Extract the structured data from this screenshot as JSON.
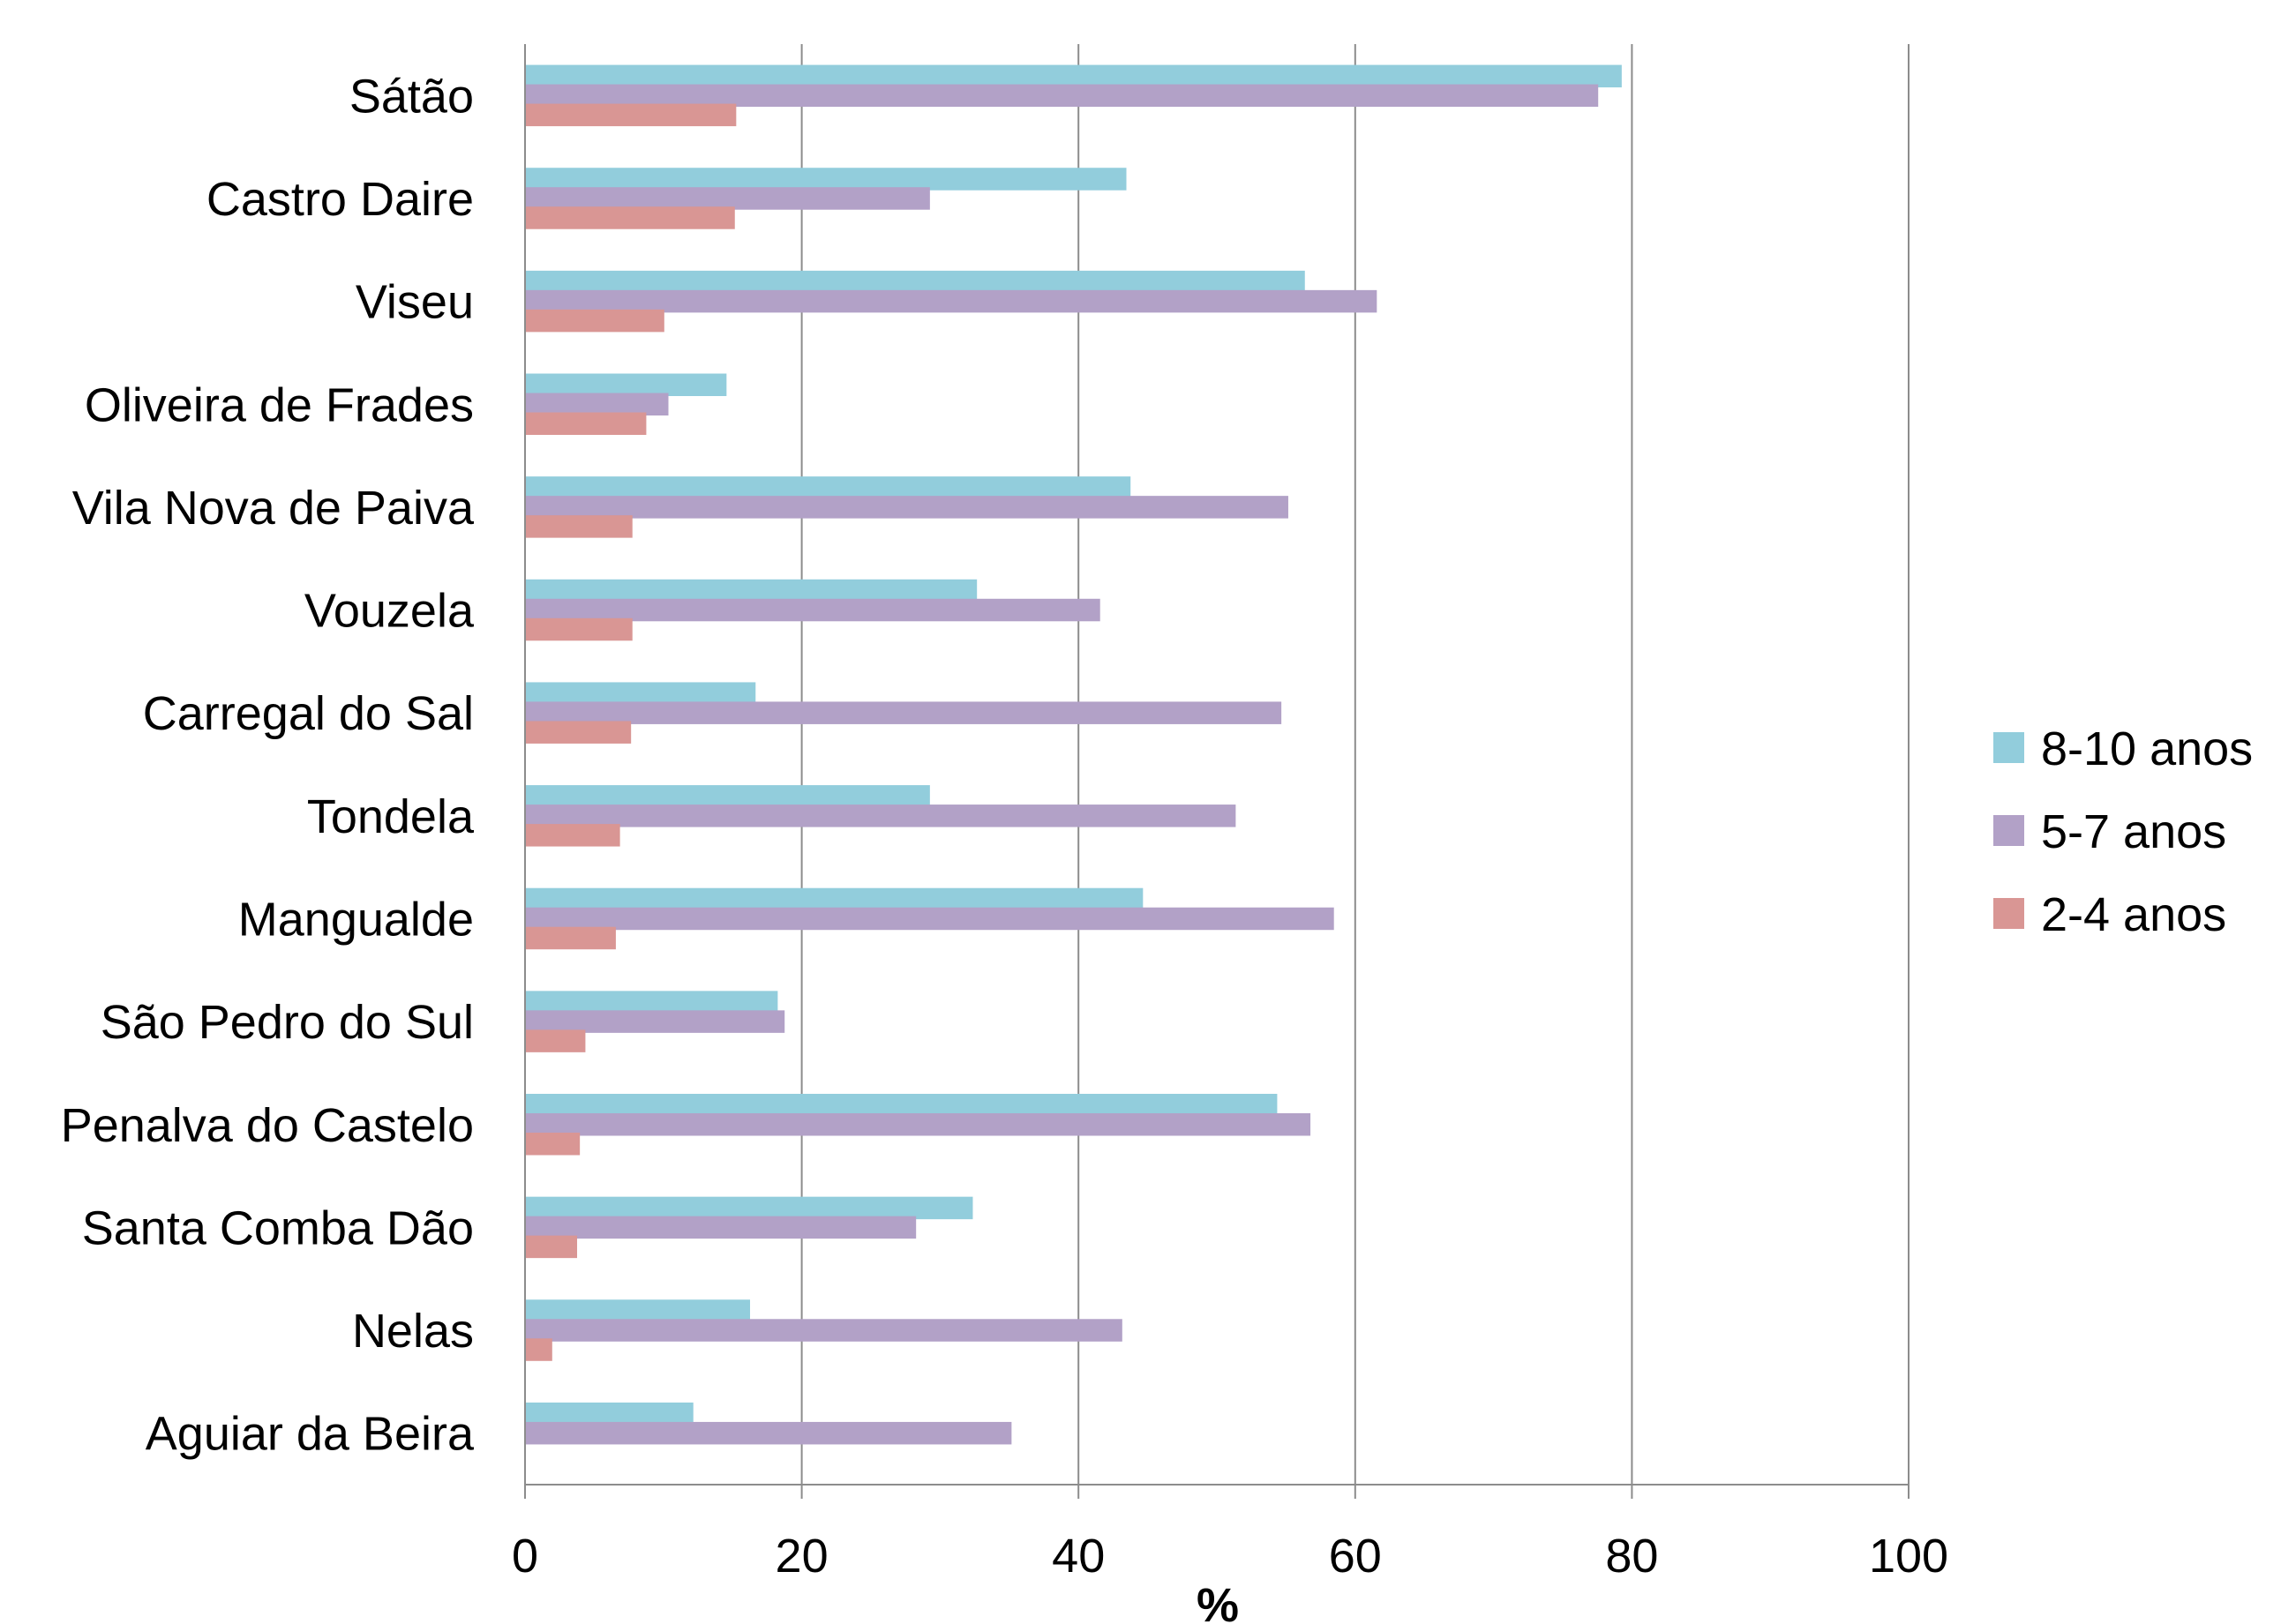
{
  "chart_data": {
    "type": "bar",
    "orientation": "horizontal",
    "categories": [
      "Sátão",
      "Castro Daire",
      "Viseu",
      "Oliveira de Frades",
      "Vila Nova de Paiva",
      "Vouzela",
      "Carregal do Sal",
      "Tondela",
      "Mangualde",
      "São Pedro do Sul",
      "Penalva do Castelo",
      "Santa Comba Dão",
      "Nelas",
      "Aguiar da Beira"
    ],
    "series": [
      {
        "name": "8-10 anos",
        "color": "#92cddc",
        "values": [
          79.2,
          43.4,
          56.3,
          14.5,
          43.7,
          32.6,
          16.6,
          29.2,
          44.6,
          18.2,
          54.3,
          32.3,
          16.2,
          12.1
        ]
      },
      {
        "name": "5-7 anos",
        "color": "#b2a1c7",
        "values": [
          77.5,
          29.2,
          61.5,
          10.3,
          55.1,
          41.5,
          54.6,
          51.3,
          58.4,
          18.7,
          56.7,
          28.2,
          43.1,
          35.1
        ]
      },
      {
        "name": "2-4 anos",
        "color": "#d99694",
        "values": [
          15.2,
          15.1,
          10.0,
          8.7,
          7.7,
          7.7,
          7.6,
          6.8,
          6.5,
          4.3,
          3.9,
          3.7,
          1.9,
          0
        ]
      }
    ],
    "xlabel": "%",
    "ylabel": "",
    "title": "",
    "xlim": [
      0,
      100
    ],
    "xticks": [
      "0",
      "20",
      "40",
      "60",
      "80",
      "100"
    ],
    "grid": true,
    "legend_position": "right"
  }
}
